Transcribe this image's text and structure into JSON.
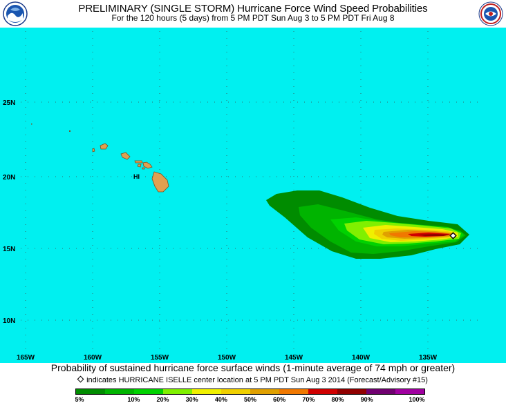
{
  "header": {
    "title": "PRELIMINARY (SINGLE STORM) Hurricane Force Wind Speed Probabilities",
    "subtitle": "For the 120 hours (5 days) from 5 PM PDT Sun Aug 3 to 5 PM PDT Fri Aug 8",
    "left_logo": "noaa-logo",
    "right_logo": "national-weather-service-logo"
  },
  "map": {
    "ocean_color": "#00f0f0",
    "land_color": "#e0a050",
    "lat_labels": [
      "25N",
      "20N",
      "15N",
      "10N"
    ],
    "lon_labels": [
      "165W",
      "160W",
      "155W",
      "150W",
      "145W",
      "140W",
      "135W"
    ],
    "region_label": "HI",
    "storm_center": {
      "lon": -133.9,
      "lat": 15.9
    }
  },
  "caption": "Probability of sustained hurricane force surface winds (1-minute average of 74 mph or greater)",
  "note": "indicates HURRICANE ISELLE center location at 5 PM PDT Sun Aug 3 2014 (Forecast/Advisory #15)",
  "legend": {
    "colors": [
      "#008c00",
      "#00b400",
      "#00d200",
      "#80f000",
      "#f0f000",
      "#f0d000",
      "#e0a000",
      "#f07800",
      "#d00000",
      "#900000",
      "#700070",
      "#a000a0"
    ],
    "labels": [
      "5%",
      "10%",
      "20%",
      "30%",
      "40%",
      "50%",
      "60%",
      "70%",
      "80%",
      "90%",
      "100%"
    ]
  }
}
